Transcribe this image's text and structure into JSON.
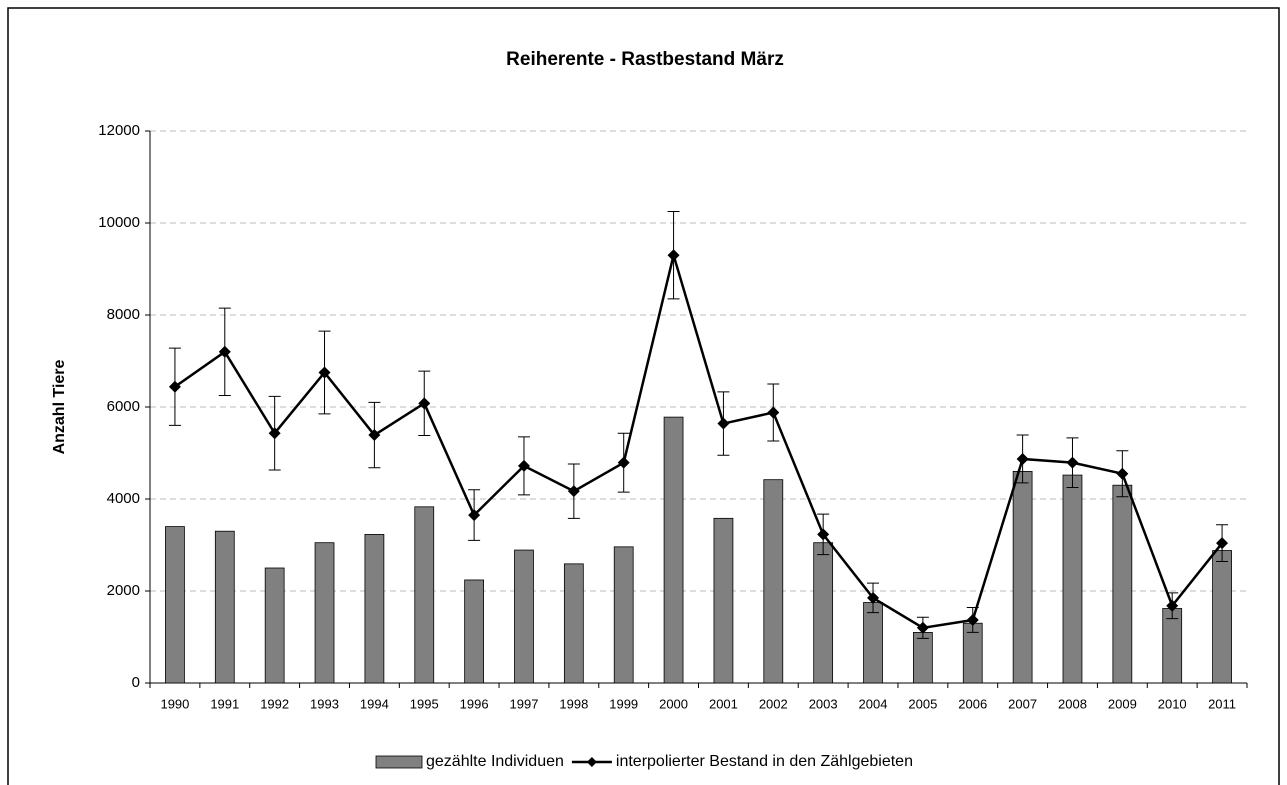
{
  "chart_data": {
    "type": "bar_line",
    "title": "Reiherente - Rastbestand März",
    "y_label": "Anzahl Tiere",
    "categories": [
      "1990",
      "1991",
      "1992",
      "1993",
      "1994",
      "1995",
      "1996",
      "1997",
      "1998",
      "1999",
      "2000",
      "2001",
      "2002",
      "2003",
      "2004",
      "2005",
      "2006",
      "2007",
      "2008",
      "2009",
      "2010",
      "2011"
    ],
    "series": [
      {
        "name": "gezählte Individuen",
        "kind": "bar",
        "color": "#808080",
        "values": [
          3400,
          3300,
          2500,
          3050,
          3230,
          3830,
          2240,
          2890,
          2590,
          2960,
          5780,
          3580,
          4420,
          3050,
          1750,
          1100,
          1300,
          4600,
          4520,
          4300,
          1620,
          2880
        ]
      },
      {
        "name": "interpolierter Bestand in den Zählgebieten",
        "kind": "line",
        "color": "#000000",
        "values": [
          6440,
          7200,
          5430,
          6750,
          5390,
          6080,
          3650,
          4720,
          4170,
          4790,
          9300,
          5640,
          5880,
          3230,
          1850,
          1200,
          1370,
          4870,
          4790,
          4550,
          1680,
          3040
        ],
        "errors": [
          840,
          950,
          800,
          900,
          710,
          700,
          550,
          630,
          590,
          640,
          950,
          690,
          620,
          440,
          320,
          230,
          270,
          520,
          540,
          500,
          280,
          400
        ]
      }
    ],
    "ylim": [
      0,
      12000
    ],
    "yticks": [
      0,
      2000,
      4000,
      6000,
      8000,
      10000,
      12000
    ],
    "grid": true
  }
}
